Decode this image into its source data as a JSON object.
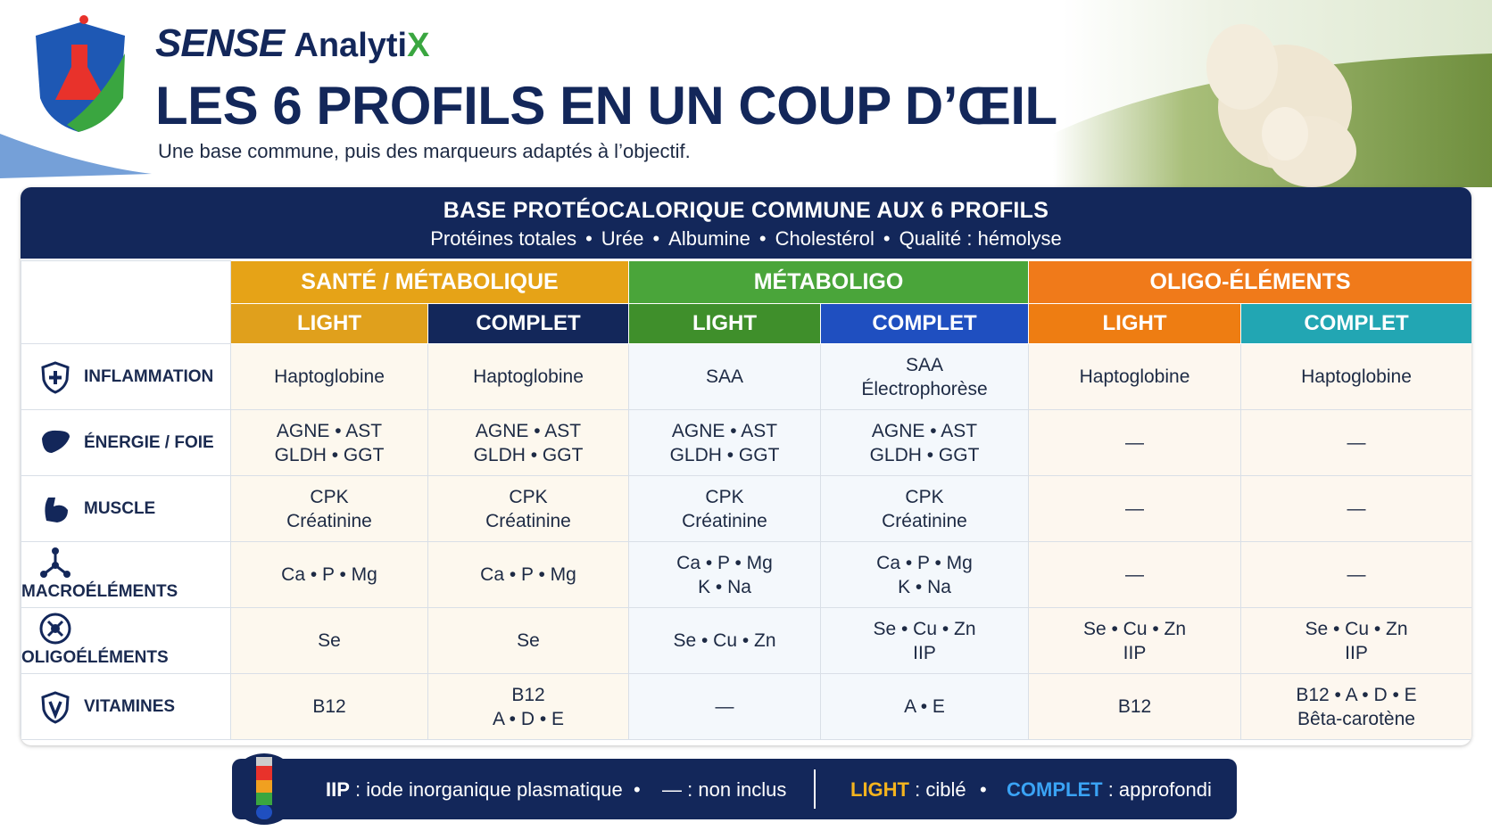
{
  "header": {
    "brand": "SENSE",
    "brand_suffix": "Analyti",
    "brand_accent": "X",
    "title": "LES 6 PROFILS EN UN COUP D’ŒIL",
    "subtitle": "Une base commune, puis des marqueurs adaptés à l’objectif."
  },
  "base": {
    "title": "BASE PROTÉOCALORIQUE COMMUNE AUX 6 PROFILS",
    "items": [
      "Protéines totales",
      "Urée",
      "Albumine",
      "Cholestérol",
      "Qualité : hémolyse"
    ]
  },
  "table": {
    "groups": [
      {
        "label": "SANTÉ / MÉTABOLIQUE",
        "color": "#e6a317",
        "variants": [
          {
            "label": "LIGHT",
            "color": "#e0a01c"
          },
          {
            "label": "COMPLET",
            "color": "#13275a"
          }
        ]
      },
      {
        "label": "MÉTABOLIGO",
        "color": "#4aa53a",
        "variants": [
          {
            "label": "LIGHT",
            "color": "#3f8f2b"
          },
          {
            "label": "COMPLET",
            "color": "#1f4fc0"
          }
        ]
      },
      {
        "label": "OLIGO-ÉLÉMENTS",
        "color": "#f07a1a",
        "variants": [
          {
            "label": "LIGHT",
            "color": "#ee7d12"
          },
          {
            "label": "COMPLET",
            "color": "#22a6b3"
          }
        ]
      }
    ],
    "rows": [
      {
        "label": "INFLAMMATION",
        "cells": [
          [
            "Haptoglobine"
          ],
          [
            "Haptoglobine"
          ],
          [
            "SAA"
          ],
          [
            "SAA",
            "Électrophorèse"
          ],
          [
            "Haptoglobine"
          ],
          [
            "Haptoglobine"
          ]
        ]
      },
      {
        "label": "ÉNERGIE / FOIE",
        "cells": [
          [
            "AGNE • AST",
            "GLDH • GGT"
          ],
          [
            "AGNE • AST",
            "GLDH • GGT"
          ],
          [
            "AGNE • AST",
            "GLDH • GGT"
          ],
          [
            "AGNE • AST",
            "GLDH • GGT"
          ],
          [
            "—"
          ],
          [
            "—"
          ]
        ]
      },
      {
        "label": "MUSCLE",
        "cells": [
          [
            "CPK",
            "Créatinine"
          ],
          [
            "CPK",
            "Créatinine"
          ],
          [
            "CPK",
            "Créatinine"
          ],
          [
            "CPK",
            "Créatinine"
          ],
          [
            "—"
          ],
          [
            "—"
          ]
        ]
      },
      {
        "label": "MACROÉLÉMENTS",
        "cells": [
          [
            "Ca • P • Mg"
          ],
          [
            "Ca • P • Mg"
          ],
          [
            "Ca • P • Mg",
            "K • Na"
          ],
          [
            "Ca • P • Mg",
            "K • Na"
          ],
          [
            "—"
          ],
          [
            "—"
          ]
        ]
      },
      {
        "label": "OLIGOÉLÉMENTS",
        "cells": [
          [
            "Se"
          ],
          [
            "Se"
          ],
          [
            "Se • Cu • Zn"
          ],
          [
            "Se • Cu • Zn",
            "IIP"
          ],
          [
            "Se • Cu • Zn",
            "IIP"
          ],
          [
            "Se • Cu • Zn",
            "IIP"
          ]
        ]
      },
      {
        "label": "VITAMINES",
        "cells": [
          [
            "B12"
          ],
          [
            "B12",
            "A • D • E"
          ],
          [
            "—"
          ],
          [
            "A • E"
          ],
          [
            "B12"
          ],
          [
            "B12 • A • D • E",
            "Bêta-carotène"
          ]
        ]
      }
    ]
  },
  "legend": {
    "iip_key": "IIP",
    "iip_text": ": iode inorganique plasmatique",
    "dash_key": "—",
    "dash_text": ": non inclus",
    "light_key": "LIGHT",
    "light_text": ": ciblé",
    "complet_key": "COMPLET",
    "complet_text": ": approfondi"
  }
}
